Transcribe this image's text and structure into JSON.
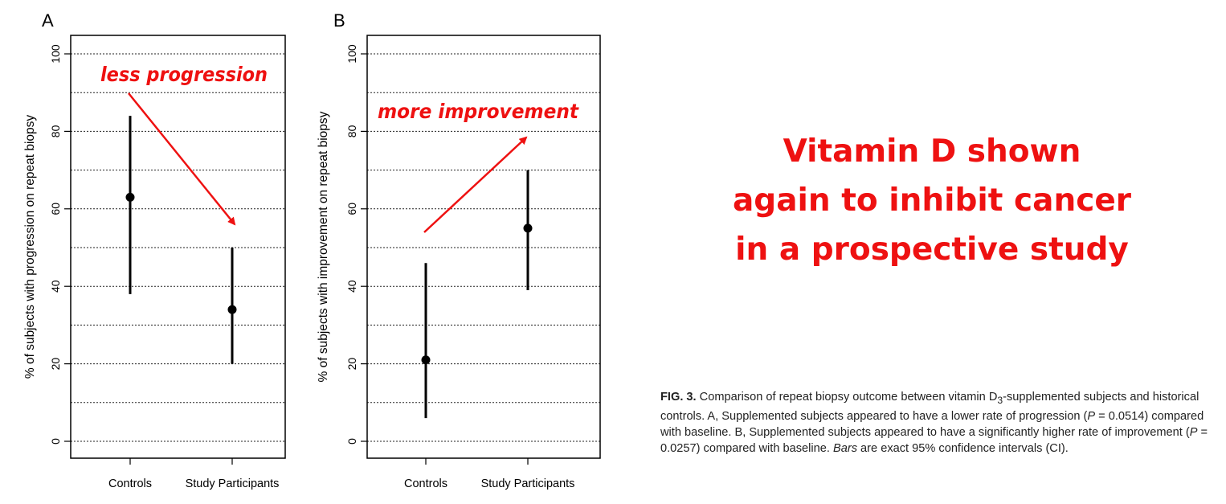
{
  "chart_data": [
    {
      "type": "scatter",
      "panel_label": "A",
      "ylabel": "% of subjects with progression on repeat biopsy",
      "categories": [
        "Controls",
        "Study Participants"
      ],
      "values": [
        63,
        34
      ],
      "ci_low": [
        38,
        20
      ],
      "ci_high": [
        84,
        50
      ],
      "ylim": [
        0,
        100
      ],
      "yticks": [
        0,
        20,
        40,
        60,
        80,
        100
      ],
      "grid": true,
      "annotation": {
        "text": "less progression",
        "color": "#ee1111",
        "arrow": "down"
      }
    },
    {
      "type": "scatter",
      "panel_label": "B",
      "ylabel": "% of subjects with improvement on repeat biopsy",
      "categories": [
        "Controls",
        "Study Participants"
      ],
      "values": [
        21,
        55
      ],
      "ci_low": [
        6,
        39
      ],
      "ci_high": [
        46,
        70
      ],
      "ylim": [
        0,
        100
      ],
      "yticks": [
        0,
        20,
        40,
        60,
        80,
        100
      ],
      "grid": true,
      "annotation": {
        "text": "more improvement",
        "color": "#ee1111",
        "arrow": "up"
      }
    }
  ],
  "headline": {
    "lines": [
      "Vitamin D shown",
      "again to inhibit cancer",
      "in a prospective study"
    ],
    "color": "#ee1111"
  },
  "caption": {
    "fig": "FIG. 3.",
    "t1": " Comparison of repeat biopsy outcome between vitamin D",
    "sub": "3",
    "t2": "-supplemented subjects and historical controls. A, Supplemented subjects appeared to have a lower rate of progression (",
    "p": "P",
    "t3": " = 0.0514) compared with baseline. B, Supplemented subjects appeared to have a significantly higher rate of improvement (",
    "t4": " = 0.0257) compared with baseline. ",
    "bars": "Bars",
    "t5": " are exact 95% confidence intervals (CI)."
  }
}
